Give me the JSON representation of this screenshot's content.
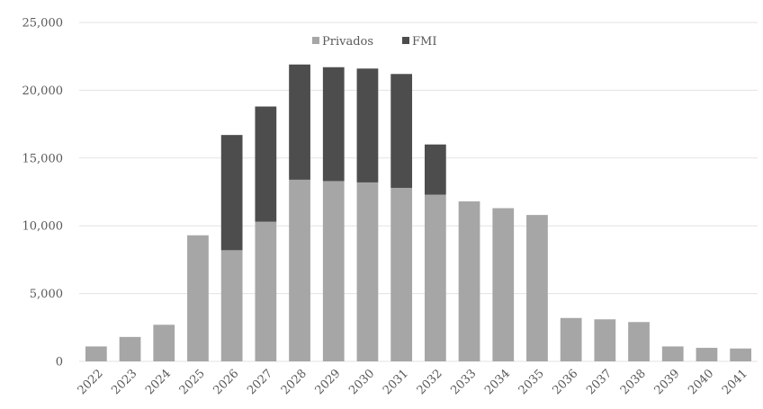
{
  "chart_data": {
    "type": "bar",
    "stacked": true,
    "categories": [
      "2022",
      "2023",
      "2024",
      "2025",
      "2026",
      "2027",
      "2028",
      "2029",
      "2030",
      "2031",
      "2032",
      "2033",
      "2034",
      "2035",
      "2036",
      "2037",
      "2038",
      "2039",
      "2040",
      "2041"
    ],
    "series": [
      {
        "name": "Privados",
        "color": "#a6a6a6",
        "values": [
          1100,
          1800,
          2700,
          9300,
          8200,
          10300,
          13400,
          13300,
          13200,
          12800,
          12300,
          11800,
          11300,
          10800,
          3200,
          3100,
          2900,
          1100,
          1000,
          950
        ]
      },
      {
        "name": "FMI",
        "color": "#4d4d4d",
        "values": [
          0,
          0,
          0,
          0,
          8500,
          8500,
          8500,
          8400,
          8400,
          8400,
          3700,
          0,
          0,
          0,
          0,
          0,
          0,
          0,
          0,
          0
        ]
      }
    ],
    "y_ticks": [
      "0",
      "5,000",
      "10,000",
      "15,000",
      "20,000",
      "25,000"
    ],
    "ylim": [
      0,
      25000
    ],
    "grid": true,
    "legend_position": "top-center",
    "title": "",
    "xlabel": "",
    "ylabel": ""
  }
}
